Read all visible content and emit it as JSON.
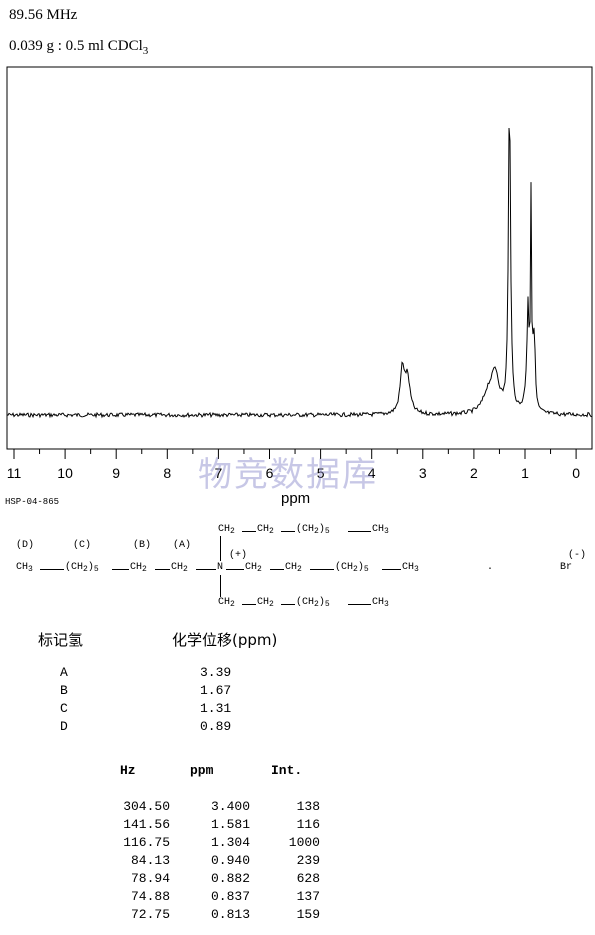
{
  "header": {
    "frequency": "89.56 MHz",
    "sample": "0.039 g : 0.5 ml CDCl",
    "sample_sub": "3"
  },
  "chart_data": {
    "type": "line",
    "title": "",
    "xlabel": "ppm",
    "ylabel": "",
    "xlim": [
      11,
      0
    ],
    "ylim": [
      0,
      1000
    ],
    "x_ticks": [
      "11",
      "10",
      "9",
      "8",
      "7",
      "6",
      "5",
      "4",
      "3",
      "2",
      "1",
      "0"
    ],
    "grid": false,
    "series": [
      {
        "peaks": [
          {
            "ppm": 3.4,
            "intensity": 138
          },
          {
            "ppm": 1.581,
            "intensity": 116
          },
          {
            "ppm": 1.304,
            "intensity": 1000
          },
          {
            "ppm": 0.94,
            "intensity": 239
          },
          {
            "ppm": 0.882,
            "intensity": 628
          },
          {
            "ppm": 0.837,
            "intensity": 137
          },
          {
            "ppm": 0.813,
            "intensity": 159
          }
        ]
      }
    ]
  },
  "code": "HSP-04-865",
  "watermark": "物竞数据库",
  "structure": {
    "labels": [
      "(D)",
      "(C)",
      "(B)",
      "(A)"
    ],
    "plus": "(+)",
    "minus": "(-)",
    "dot": ".",
    "br": "Br",
    "ch3": "CH",
    "ch2": "CH",
    "n": "N",
    "paren_ch2": "(CH",
    "close": ")",
    "sub2": "2",
    "sub3": "3",
    "sub5": "5"
  },
  "assign_table": {
    "header_label": "标记氢",
    "header_shift": "化学位移(ppm)",
    "rows": [
      {
        "label": "A",
        "shift": "3.39"
      },
      {
        "label": "B",
        "shift": "1.67"
      },
      {
        "label": "C",
        "shift": "1.31"
      },
      {
        "label": "D",
        "shift": "0.89"
      }
    ]
  },
  "peak_table": {
    "headers": [
      "Hz",
      "ppm",
      "Int."
    ],
    "rows": [
      [
        "304.50",
        "3.400",
        "138"
      ],
      [
        "141.56",
        "1.581",
        "116"
      ],
      [
        "116.75",
        "1.304",
        "1000"
      ],
      [
        "84.13",
        "0.940",
        "239"
      ],
      [
        "78.94",
        "0.882",
        "628"
      ],
      [
        "74.88",
        "0.837",
        "137"
      ],
      [
        "72.75",
        "0.813",
        "159"
      ]
    ]
  }
}
